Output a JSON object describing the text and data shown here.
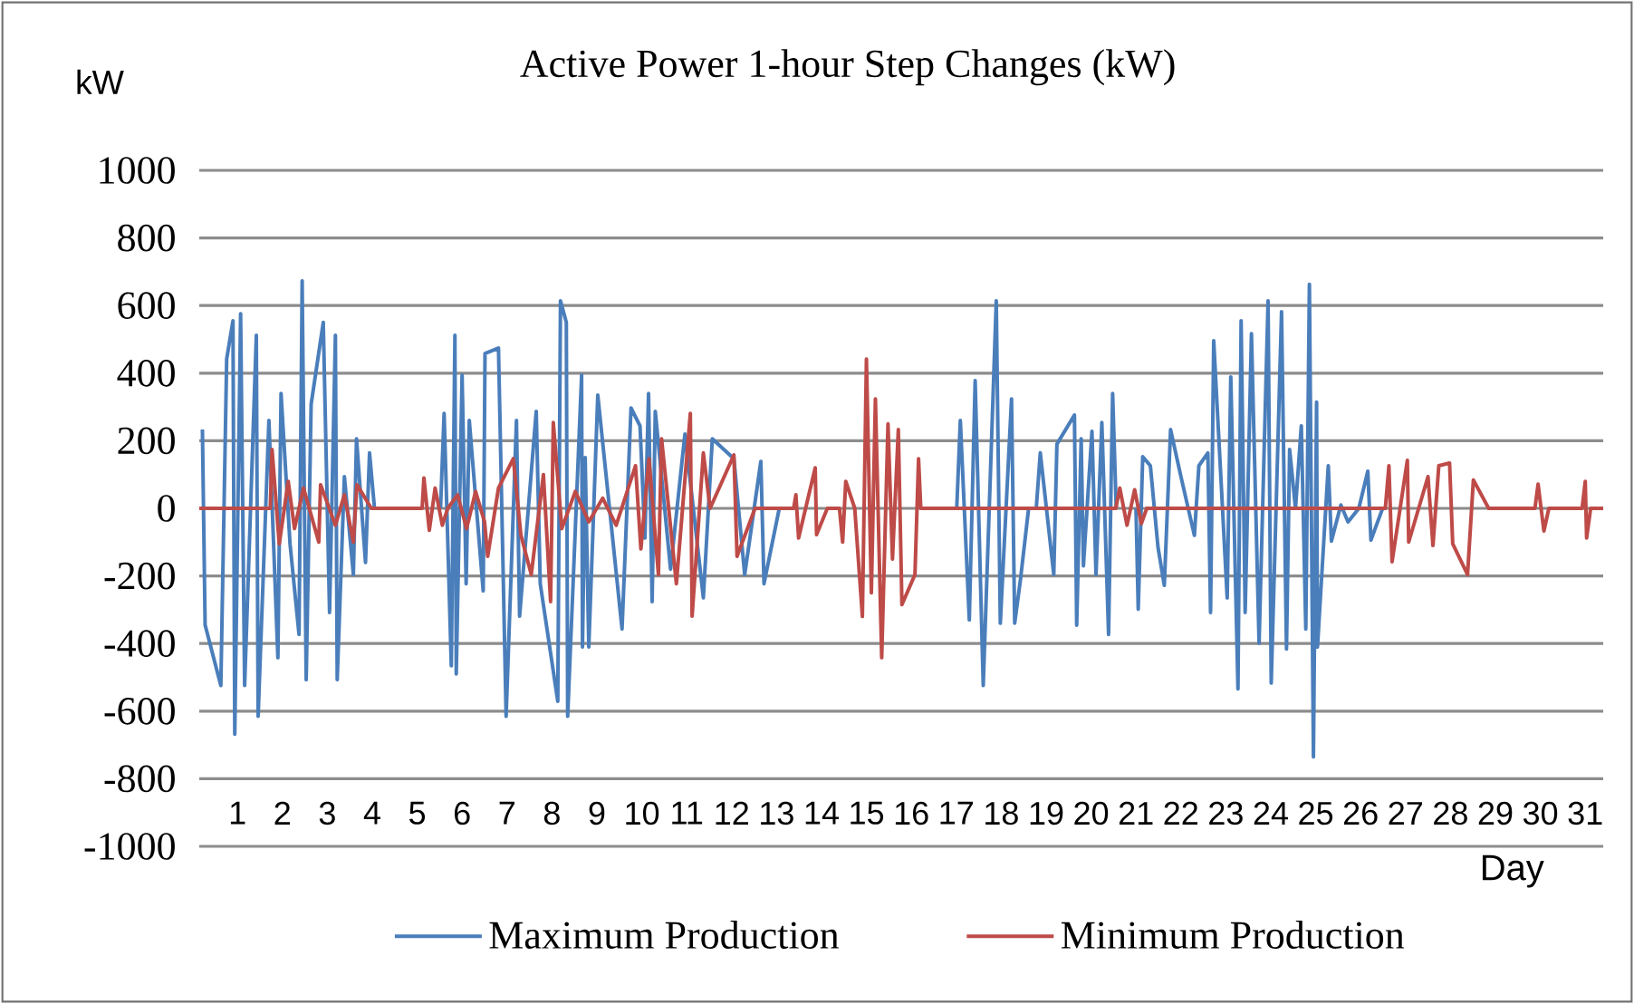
{
  "chart_data": {
    "type": "line",
    "title": "Active Power 1-hour Step Changes (kW)",
    "ylabel": "kW",
    "xlabel": "Day",
    "xlim": [
      0.15,
      31.4
    ],
    "ylim": [
      -1000,
      1000
    ],
    "yticks": [
      -1000,
      -800,
      -600,
      -400,
      -200,
      0,
      200,
      400,
      600,
      800,
      1000
    ],
    "xticks": [
      1,
      2,
      3,
      4,
      5,
      6,
      7,
      8,
      9,
      10,
      11,
      12,
      13,
      14,
      15,
      16,
      17,
      18,
      19,
      20,
      21,
      22,
      23,
      24,
      25,
      26,
      27,
      28,
      29,
      30,
      31
    ],
    "grid": "y",
    "legend": "bottom",
    "series": [
      {
        "name": "Maximum Production",
        "color": "#4a7ebb",
        "x": [
          0.22,
          0.28,
          0.63,
          0.76,
          0.9,
          0.94,
          1.07,
          1.16,
          1.42,
          1.46,
          1.7,
          1.9,
          1.97,
          2.17,
          2.37,
          2.44,
          2.53,
          2.64,
          2.91,
          3.05,
          3.18,
          3.22,
          3.38,
          3.58,
          3.65,
          3.85,
          3.94,
          4.05,
          4.69,
          5.52,
          5.6,
          5.76,
          5.84,
          5.87,
          6.0,
          6.09,
          6.16,
          6.47,
          6.51,
          6.81,
          6.98,
          7.21,
          7.28,
          7.65,
          7.74,
          8.13,
          8.19,
          8.32,
          8.35,
          8.66,
          8.68,
          8.74,
          8.82,
          9.02,
          9.56,
          9.76,
          9.96,
          10.07,
          10.15,
          10.23,
          10.3,
          10.64,
          10.96,
          11.37,
          11.57,
          12.05,
          12.29,
          12.65,
          12.72,
          13.06,
          14.27,
          17.01,
          17.09,
          17.29,
          17.42,
          17.6,
          17.89,
          17.98,
          18.23,
          18.3,
          18.43,
          18.61,
          18.78,
          18.87,
          19.17,
          19.24,
          19.63,
          19.68,
          19.78,
          19.83,
          20.02,
          20.11,
          20.24,
          20.39,
          20.48,
          20.56,
          20.82,
          21.0,
          21.05,
          21.15,
          21.32,
          21.49,
          21.63,
          21.77,
          22.0,
          22.3,
          22.4,
          22.6,
          22.66,
          22.73,
          23.03,
          23.11,
          23.27,
          23.34,
          23.43,
          23.57,
          23.74,
          23.94,
          24.01,
          24.24,
          24.35,
          24.42,
          24.55,
          24.68,
          24.78,
          24.86,
          24.95,
          25.02,
          25.04,
          25.28,
          25.35,
          25.56,
          25.72,
          25.96,
          26.16,
          26.23,
          26.49
        ],
        "values": [
          233,
          -345,
          -524,
          442,
          555,
          -668,
          576,
          -524,
          512,
          -615,
          260,
          -442,
          340,
          -105,
          -373,
          673,
          -507,
          308,
          550,
          -308,
          512,
          -507,
          94,
          -196,
          206,
          -160,
          164,
          0,
          null,
          0,
          281,
          -466,
          512,
          -490,
          394,
          -223,
          260,
          -244,
          458,
          474,
          -615,
          260,
          -319,
          287,
          -223,
          -571,
          614,
          550,
          -615,
          394,
          -410,
          150,
          -410,
          335,
          -357,
          297,
          244,
          -88,
          340,
          -276,
          287,
          -180,
          220,
          -265,
          206,
          147,
          -196,
          139,
          -223,
          0,
          null,
          0,
          260,
          -330,
          378,
          -524,
          614,
          -340,
          324,
          -340,
          -209,
          0,
          0,
          164,
          -196,
          190,
          276,
          -346,
          206,
          -170,
          228,
          -196,
          254,
          -373,
          340,
          0,
          null,
          0,
          -298,
          153,
          126,
          -115,
          -228,
          233,
          94,
          -80,
          126,
          164,
          -308,
          496,
          -265,
          389,
          -534,
          555,
          -308,
          517,
          -399,
          614,
          -517,
          582,
          -416,
          174,
          0,
          244,
          -357,
          663,
          -735,
          314,
          -410,
          126,
          -97,
          10,
          -40,
          0,
          110,
          -94,
          0
        ]
      },
      {
        "name": "Minimum Production",
        "color": "#be4b48",
        "x": [
          0.15,
          1.73,
          1.77,
          1.93,
          2.13,
          2.27,
          2.47,
          2.81,
          2.85,
          3.18,
          3.38,
          3.58,
          3.66,
          3.98,
          5.11,
          5.15,
          5.27,
          5.4,
          5.56,
          5.68,
          5.9,
          6.1,
          6.3,
          6.5,
          6.57,
          6.81,
          7.14,
          7.31,
          7.54,
          7.81,
          7.97,
          8.03,
          8.22,
          8.52,
          8.82,
          9.13,
          9.43,
          9.86,
          9.98,
          10.16,
          10.37,
          10.44,
          10.77,
          11.08,
          11.12,
          11.37,
          11.52,
          12.05,
          12.12,
          12.52,
          13.38,
          13.43,
          13.49,
          13.86,
          13.89,
          14.13,
          14.4,
          14.47,
          14.54,
          14.74,
          14.91,
          15.0,
          15.11,
          15.2,
          15.34,
          15.48,
          15.58,
          15.71,
          15.79,
          16.08,
          16.16,
          16.21,
          20.55,
          20.64,
          20.8,
          20.97,
          21.12,
          21.24,
          26.55,
          26.63,
          26.7,
          27.04,
          27.07,
          27.5,
          27.61,
          27.74,
          27.98,
          28.05,
          28.38,
          28.51,
          28.85,
          29.88,
          29.95,
          30.08,
          30.19,
          30.93,
          31.0,
          31.03,
          31.12,
          31.4
        ],
        "values": [
          0,
          0,
          174,
          -105,
          80,
          -60,
          60,
          -100,
          70,
          -50,
          40,
          -100,
          70,
          0,
          0,
          90,
          -65,
          60,
          -50,
          0,
          40,
          -60,
          50,
          -40,
          -142,
          60,
          147,
          -80,
          -196,
          100,
          -276,
          254,
          -60,
          50,
          -40,
          30,
          -50,
          126,
          -120,
          147,
          -196,
          206,
          -223,
          281,
          -319,
          164,
          0,
          158,
          -142,
          0,
          0,
          40,
          -88,
          120,
          -78,
          0,
          0,
          -100,
          80,
          0,
          -320,
          442,
          -250,
          324,
          -442,
          250,
          -150,
          233,
          -285,
          -196,
          147,
          0,
          0,
          60,
          -50,
          55,
          -45,
          0,
          0,
          126,
          -158,
          142,
          -100,
          94,
          -110,
          126,
          134,
          -105,
          -196,
          84,
          0,
          0,
          72,
          -67,
          0,
          0,
          80,
          -88,
          0,
          0
        ]
      }
    ]
  }
}
